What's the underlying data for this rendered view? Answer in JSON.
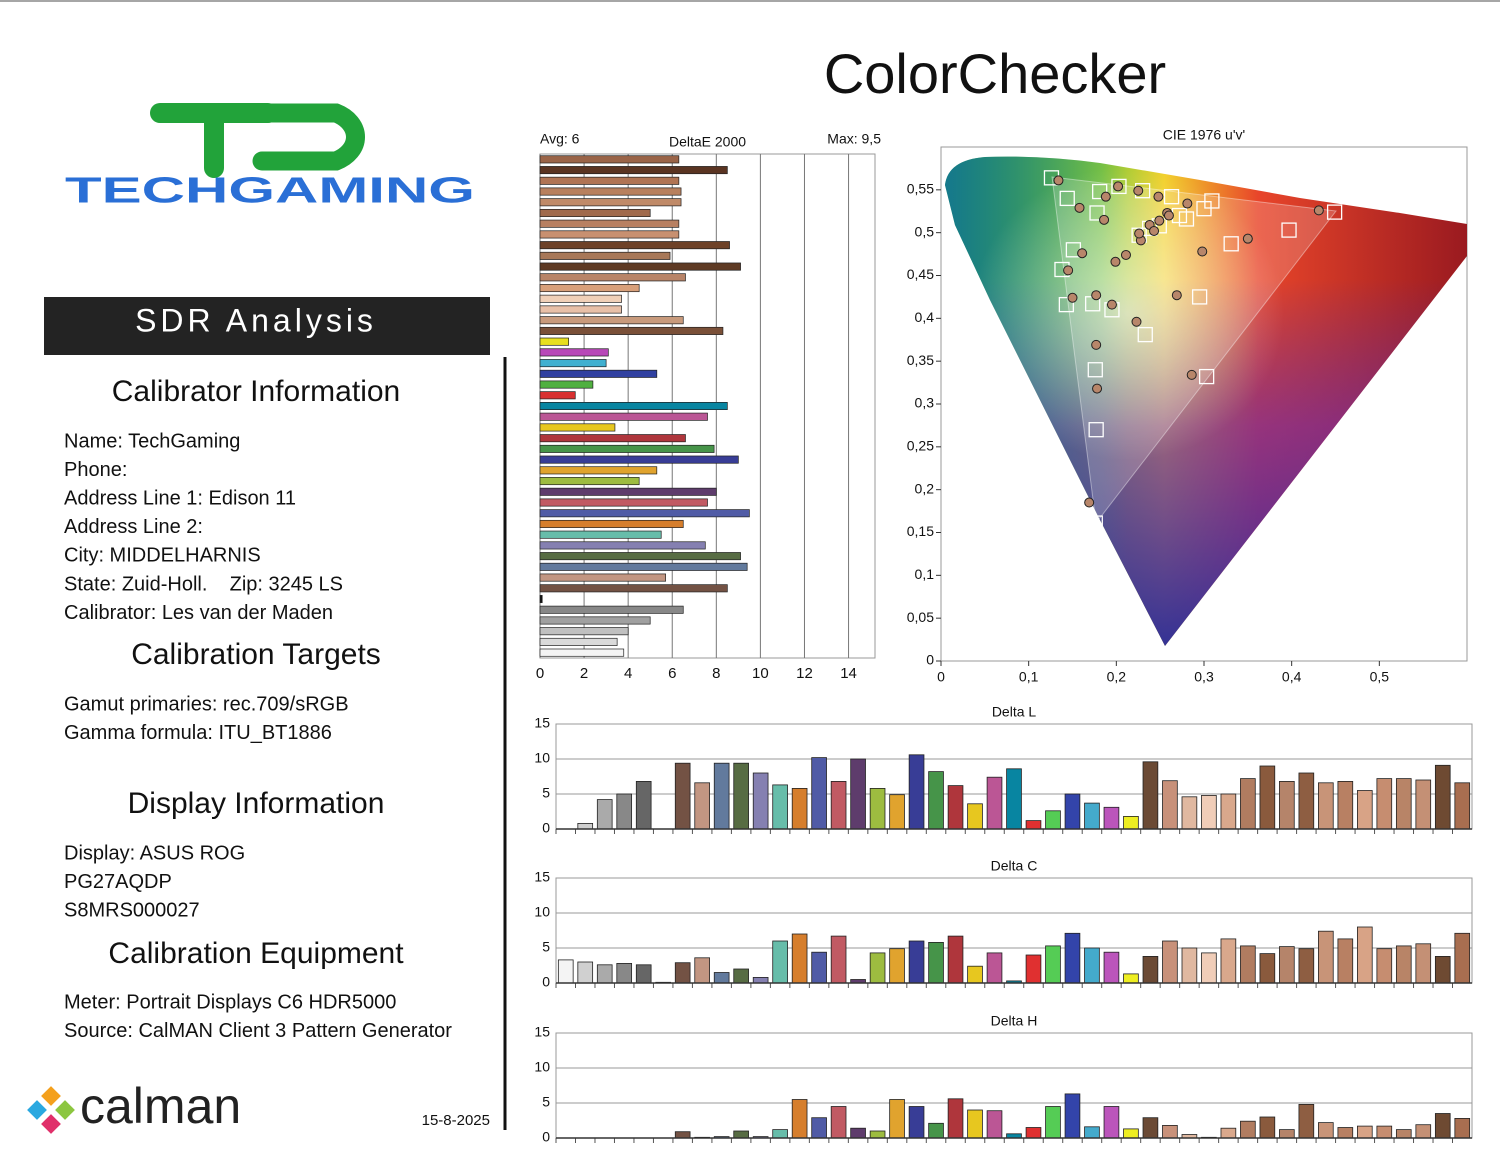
{
  "header": {
    "title": "ColorChecker",
    "banner": "SDR Analysis"
  },
  "logo": {
    "brand": "TECHGAMING"
  },
  "sections": [
    {
      "heading": "Calibrator Information",
      "lines": [
        "Name: TechGaming",
        "Phone:",
        "Address Line 1: Edison 11",
        "Address Line 2:",
        "City: MIDDELHARNIS",
        "State: Zuid-Holl.    Zip: 3245 LS",
        "Calibrator: Les van der Maden"
      ]
    },
    {
      "heading": "Calibration Targets",
      "lines": [
        "Gamut primaries: rec.709/sRGB",
        "Gamma formula: ITU_BT1886"
      ]
    },
    {
      "heading": "Display Information",
      "lines": [
        "Display: ASUS ROG",
        "PG27AQDP",
        "S8MRS000027"
      ]
    },
    {
      "heading": "Calibration Equipment",
      "lines": [
        "Meter: Portrait Displays C6 HDR5000",
        "Source: CalMAN Client 3 Pattern Generator"
      ]
    }
  ],
  "footer": {
    "brand": "calman",
    "date": "15-8-2025"
  },
  "chart_data": [
    {
      "type": "bar",
      "orientation": "horizontal",
      "title": "DeltaE 2000",
      "annotations": [
        "Avg: 6",
        "Max: 9,5"
      ],
      "values": [
        6.3,
        8.5,
        6.3,
        6.4,
        6.4,
        5.0,
        6.3,
        6.3,
        8.6,
        5.9,
        9.1,
        6.6,
        4.5,
        3.7,
        3.7,
        6.5,
        8.3,
        1.3,
        3.1,
        3.0,
        5.3,
        2.4,
        1.6,
        8.5,
        7.6,
        3.4,
        6.6,
        7.9,
        9.0,
        5.3,
        4.5,
        8.0,
        7.6,
        9.5,
        6.5,
        5.5,
        7.5,
        9.1,
        9.4,
        5.7,
        8.5,
        0.1,
        6.5,
        5.0,
        4.0,
        3.5,
        3.8
      ],
      "colors": [
        "#9a6448",
        "#5a3422",
        "#b07454",
        "#b8805e",
        "#c08a68",
        "#a06a4c",
        "#b88062",
        "#c89070",
        "#6e4228",
        "#a87858",
        "#5e3a24",
        "#b88468",
        "#d8a07a",
        "#f0d0b8",
        "#e8c0a8",
        "#c89a7c",
        "#7a5038",
        "#e8e020",
        "#b848b8",
        "#40b0d0",
        "#3040a0",
        "#50b040",
        "#d83030",
        "#0885a1",
        "#bb5695",
        "#e7c71f",
        "#af363c",
        "#469449",
        "#383d96",
        "#e0a32e",
        "#9dbc40",
        "#5e3c6c",
        "#c15a63",
        "#505ba6",
        "#d67e2c",
        "#67bdaa",
        "#8580b1",
        "#576c43",
        "#627a9d",
        "#c29682",
        "#735244",
        "#111111",
        "#888888",
        "#a0a0a0",
        "#c0c0c0",
        "#dadada",
        "#f4f4f4"
      ],
      "xlim": [
        0,
        15.2
      ],
      "xticks": [
        0,
        2,
        4,
        6,
        8,
        10,
        12,
        14
      ],
      "grid": true
    },
    {
      "type": "scatter",
      "title": "CIE 1976 u'v'",
      "series": [
        {
          "marker": "square",
          "color": "#ffffff",
          "x": [
            0.126,
            0.144,
            0.181,
            0.203,
            0.23,
            0.263,
            0.309,
            0.3,
            0.28,
            0.178,
            0.397,
            0.449,
            0.331,
            0.151,
            0.138,
            0.295,
            0.143,
            0.173,
            0.195,
            0.233,
            0.176,
            0.303,
            0.177,
            0.176,
            0.249,
            0.226,
            0.238,
            0.272
          ],
          "values": [
            0.564,
            0.54,
            0.548,
            0.554,
            0.549,
            0.542,
            0.537,
            0.528,
            0.516,
            0.523,
            0.503,
            0.524,
            0.487,
            0.48,
            0.457,
            0.425,
            0.416,
            0.417,
            0.41,
            0.381,
            0.34,
            0.332,
            0.27,
            0.161,
            0.508,
            0.497,
            0.505,
            0.52
          ]
        },
        {
          "marker": "circle",
          "color": "#b8866a",
          "x": [
            0.134,
            0.158,
            0.188,
            0.202,
            0.225,
            0.248,
            0.281,
            0.258,
            0.186,
            0.431,
            0.35,
            0.298,
            0.161,
            0.145,
            0.269,
            0.15,
            0.177,
            0.195,
            0.223,
            0.177,
            0.286,
            0.178,
            0.169,
            0.199,
            0.211,
            0.228,
            0.238,
            0.249,
            0.26,
            0.226,
            0.243
          ],
          "values": [
            0.561,
            0.529,
            0.542,
            0.554,
            0.549,
            0.542,
            0.534,
            0.523,
            0.515,
            0.526,
            0.493,
            0.478,
            0.476,
            0.456,
            0.427,
            0.424,
            0.427,
            0.416,
            0.396,
            0.369,
            0.334,
            0.318,
            0.185,
            0.466,
            0.474,
            0.491,
            0.509,
            0.514,
            0.52,
            0.499,
            0.502
          ]
        }
      ],
      "xlim": [
        0,
        0.6
      ],
      "ylim": [
        0,
        0.6
      ],
      "xticks": [
        0,
        {
          "value": 0.1,
          "label": "0,1"
        },
        {
          "value": 0.2,
          "label": "0,2"
        },
        {
          "value": 0.3,
          "label": "0,3"
        },
        {
          "value": 0.4,
          "label": "0,4"
        },
        {
          "value": 0.5,
          "label": "0,5"
        }
      ],
      "yticks": [
        0,
        {
          "value": 0.05,
          "label": "0,05"
        },
        {
          "value": 0.1,
          "label": "0,1"
        },
        {
          "value": 0.15,
          "label": "0,15"
        },
        {
          "value": 0.2,
          "label": "0,2"
        },
        {
          "value": 0.25,
          "label": "0,25"
        },
        {
          "value": 0.3,
          "label": "0,3"
        },
        {
          "value": 0.35,
          "label": "0,35"
        },
        {
          "value": 0.4,
          "label": "0,4"
        },
        {
          "value": 0.45,
          "label": "0,45"
        },
        {
          "value": 0.5,
          "label": "0,5"
        },
        {
          "value": 0.55,
          "label": "0,55"
        }
      ],
      "grid": false
    },
    {
      "type": "bar",
      "orientation": "vertical",
      "title": "Delta L",
      "values": [
        0,
        0.8,
        4.2,
        5.0,
        6.8,
        0,
        9.4,
        6.6,
        9.4,
        9.4,
        8.0,
        6.3,
        5.8,
        10.2,
        6.8,
        10.0,
        5.8,
        4.9,
        10.6,
        8.2,
        6.2,
        3.6,
        7.4,
        8.6,
        1.2,
        2.6,
        5.0,
        3.7,
        3.1,
        1.8,
        9.6,
        6.9,
        4.6,
        4.8,
        5.0,
        7.2,
        9.0,
        6.8,
        8.0,
        6.6,
        6.8,
        5.5,
        7.2,
        7.2,
        7.0,
        9.1,
        6.6
      ],
      "colors": [
        "#f4f4f4",
        "#d0d0d0",
        "#aaaaaa",
        "#888888",
        "#666666",
        "#333333",
        "#735244",
        "#c29682",
        "#627a9d",
        "#576c43",
        "#8580b1",
        "#67bdaa",
        "#d67e2c",
        "#505ba6",
        "#c15a63",
        "#5e3c6c",
        "#9dbc40",
        "#e0a32e",
        "#383d96",
        "#469449",
        "#af363c",
        "#e7c71f",
        "#bb5695",
        "#0885a1",
        "#e03030",
        "#55cc55",
        "#3344aa",
        "#44aacc",
        "#bb55bb",
        "#eeee22",
        "#6b4a35",
        "#c8917a",
        "#e0b8a0",
        "#f0cdb8",
        "#d9a88c",
        "#b07c60",
        "#8a5a3d",
        "#b5846a",
        "#8e5e42",
        "#c89478",
        "#b88063",
        "#d8a386",
        "#c68d70",
        "#b88467",
        "#c49075",
        "#6e4a32",
        "#a86e50"
      ],
      "ylim": [
        0,
        15
      ],
      "yticks": [
        0,
        5,
        10,
        15
      ],
      "grid": true
    },
    {
      "type": "bar",
      "orientation": "vertical",
      "title": "Delta C",
      "values": [
        3.3,
        3.0,
        2.6,
        2.8,
        2.6,
        0.1,
        2.9,
        3.6,
        1.5,
        2.0,
        0.8,
        6.0,
        7.0,
        4.4,
        6.7,
        0.5,
        4.3,
        4.9,
        6.0,
        5.8,
        6.7,
        2.4,
        4.3,
        0.3,
        4.0,
        5.3,
        7.1,
        5.0,
        4.4,
        1.3,
        3.8,
        6.0,
        5.0,
        4.3,
        6.3,
        5.3,
        4.2,
        5.2,
        4.9,
        7.4,
        6.3,
        8.0,
        4.9,
        5.3,
        5.6,
        3.8,
        7.1
      ],
      "colors": [
        "#f4f4f4",
        "#d0d0d0",
        "#aaaaaa",
        "#888888",
        "#666666",
        "#333333",
        "#735244",
        "#c29682",
        "#627a9d",
        "#576c43",
        "#8580b1",
        "#67bdaa",
        "#d67e2c",
        "#505ba6",
        "#c15a63",
        "#5e3c6c",
        "#9dbc40",
        "#e0a32e",
        "#383d96",
        "#469449",
        "#af363c",
        "#e7c71f",
        "#bb5695",
        "#0885a1",
        "#e03030",
        "#55cc55",
        "#3344aa",
        "#44aacc",
        "#bb55bb",
        "#eeee22",
        "#6b4a35",
        "#c8917a",
        "#e0b8a0",
        "#f0cdb8",
        "#d9a88c",
        "#b07c60",
        "#8a5a3d",
        "#b5846a",
        "#8e5e42",
        "#c89478",
        "#b88063",
        "#d8a386",
        "#c68d70",
        "#b88467",
        "#c49075",
        "#6e4a32",
        "#a86e50"
      ],
      "ylim": [
        0,
        15
      ],
      "yticks": [
        0,
        5,
        10,
        15
      ],
      "grid": true
    },
    {
      "type": "bar",
      "orientation": "vertical",
      "title": "Delta H",
      "values": [
        0,
        0,
        0,
        0,
        0,
        0,
        0.9,
        0.1,
        0.2,
        1.0,
        0.2,
        1.2,
        5.5,
        2.9,
        4.5,
        1.4,
        1.0,
        5.5,
        4.5,
        2.1,
        5.6,
        4.0,
        3.9,
        0.6,
        1.5,
        4.5,
        6.3,
        1.6,
        4.5,
        1.3,
        2.9,
        1.8,
        0.5,
        0.1,
        1.4,
        2.4,
        3.0,
        1.2,
        4.8,
        2.2,
        1.5,
        1.7,
        1.7,
        1.2,
        1.9,
        3.5,
        2.8
      ],
      "colors": [
        "#f4f4f4",
        "#d0d0d0",
        "#aaaaaa",
        "#888888",
        "#666666",
        "#333333",
        "#735244",
        "#c29682",
        "#627a9d",
        "#576c43",
        "#8580b1",
        "#67bdaa",
        "#d67e2c",
        "#505ba6",
        "#c15a63",
        "#5e3c6c",
        "#9dbc40",
        "#e0a32e",
        "#383d96",
        "#469449",
        "#af363c",
        "#e7c71f",
        "#bb5695",
        "#0885a1",
        "#e03030",
        "#55cc55",
        "#3344aa",
        "#44aacc",
        "#bb55bb",
        "#eeee22",
        "#6b4a35",
        "#c8917a",
        "#e0b8a0",
        "#f0cdb8",
        "#d9a88c",
        "#b07c60",
        "#8a5a3d",
        "#b5846a",
        "#8e5e42",
        "#c89478",
        "#b88063",
        "#d8a386",
        "#c68d70",
        "#b88467",
        "#c49075",
        "#6e4a32",
        "#a86e50"
      ],
      "ylim": [
        0,
        15
      ],
      "yticks": [
        0,
        5,
        10,
        15
      ],
      "grid": true
    }
  ]
}
